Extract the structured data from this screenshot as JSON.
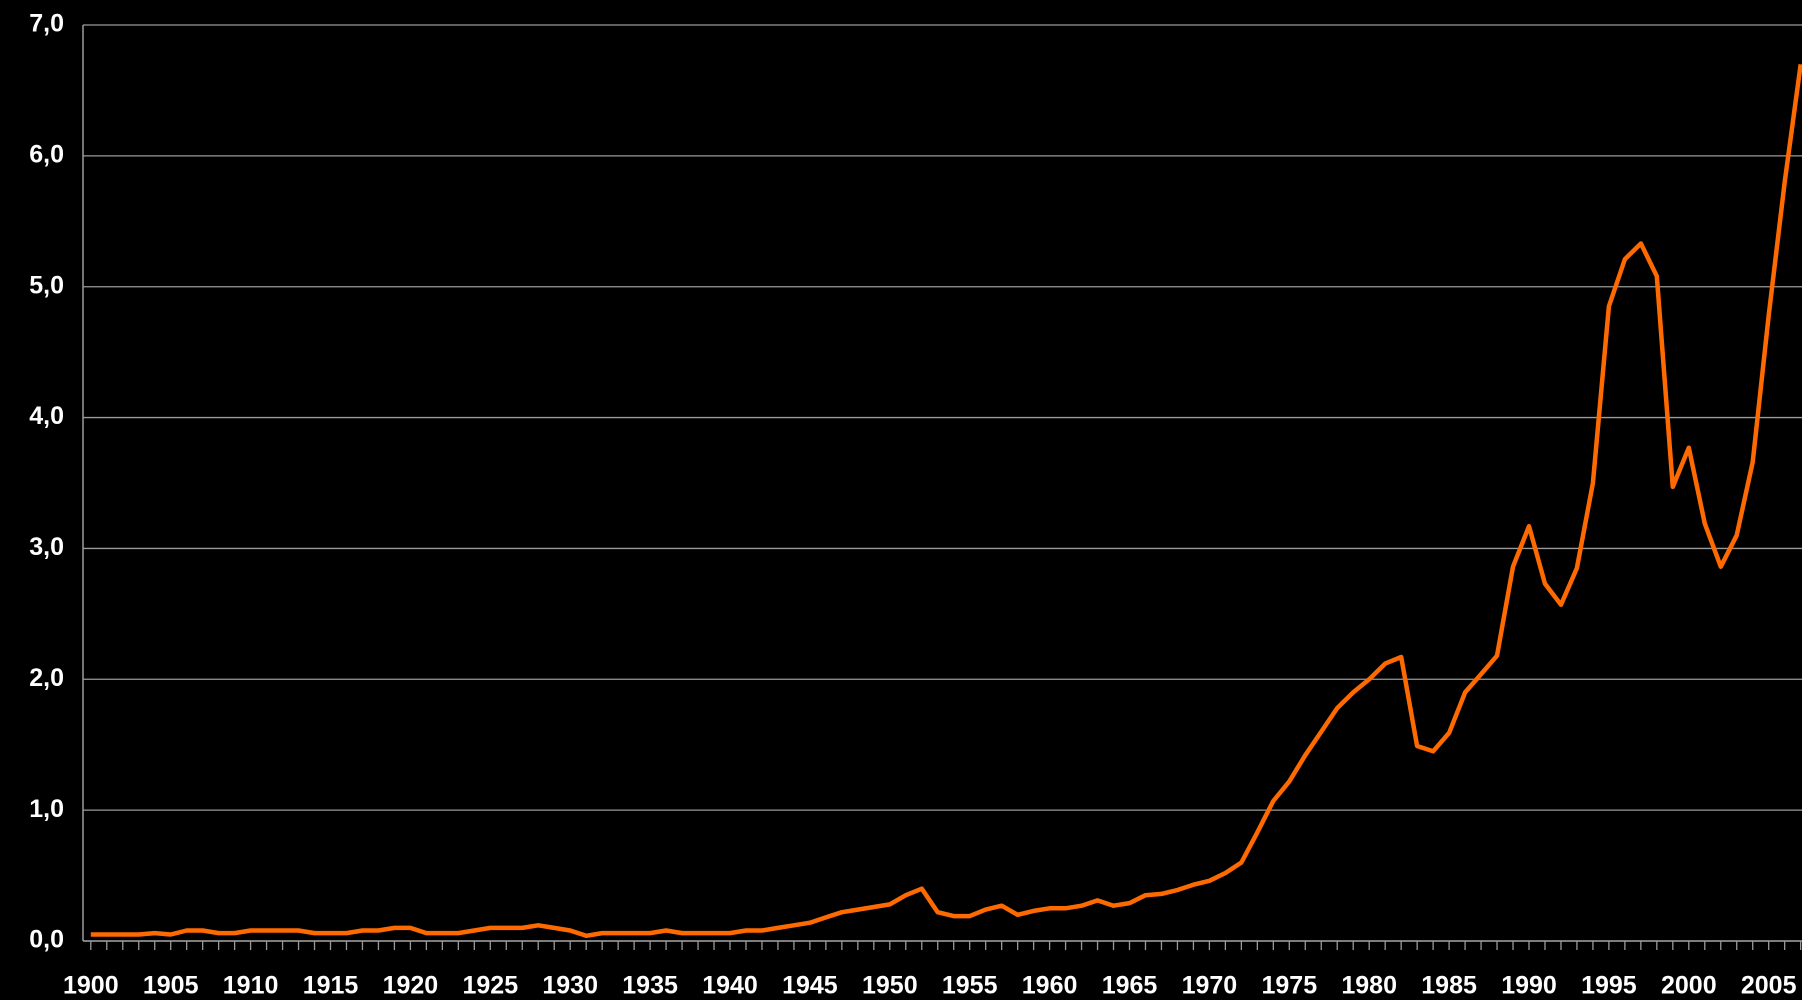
{
  "chart_data": {
    "type": "line",
    "categories": [
      "1900",
      null,
      null,
      null,
      null,
      "1905",
      null,
      null,
      null,
      null,
      "1910",
      null,
      null,
      null,
      null,
      "1915",
      null,
      null,
      null,
      null,
      "1920",
      null,
      null,
      null,
      null,
      "1925",
      null,
      null,
      null,
      null,
      "1930",
      null,
      null,
      null,
      null,
      "1935",
      null,
      null,
      null,
      null,
      "1940",
      null,
      null,
      null,
      null,
      "1945",
      null,
      null,
      null,
      null,
      "1950",
      null,
      null,
      null,
      null,
      "1955",
      null,
      null,
      null,
      null,
      "1960",
      null,
      null,
      null,
      null,
      "1965",
      null,
      null,
      null,
      null,
      "1970",
      null,
      null,
      null,
      null,
      "1975",
      null,
      null,
      null,
      null,
      "1980",
      null,
      null,
      null,
      null,
      "1985",
      null,
      null,
      null,
      null,
      "1990",
      null,
      null,
      null,
      null,
      "1995",
      null,
      null,
      null,
      null,
      "2000",
      null,
      null,
      null,
      null,
      "2005",
      null,
      null
    ],
    "series": [
      {
        "color": "#ff6a00",
        "values": [
          0.05,
          0.05,
          0.05,
          0.05,
          0.06,
          0.05,
          0.08,
          0.08,
          0.06,
          0.06,
          0.08,
          0.08,
          0.08,
          0.08,
          0.06,
          0.06,
          0.06,
          0.08,
          0.08,
          0.1,
          0.1,
          0.06,
          0.06,
          0.06,
          0.08,
          0.1,
          0.1,
          0.1,
          0.12,
          0.1,
          0.08,
          0.04,
          0.06,
          0.06,
          0.06,
          0.06,
          0.08,
          0.06,
          0.06,
          0.06,
          0.06,
          0.08,
          0.08,
          0.1,
          0.12,
          0.14,
          0.18,
          0.22,
          0.24,
          0.26,
          0.28,
          0.35,
          0.4,
          0.22,
          0.19,
          0.19,
          0.24,
          0.27,
          0.2,
          0.23,
          0.25,
          0.25,
          0.27,
          0.31,
          0.27,
          0.29,
          0.35,
          0.36,
          0.39,
          0.43,
          0.46,
          0.52,
          0.6,
          0.83,
          1.07,
          1.22,
          1.42,
          1.6,
          1.78,
          1.9,
          2.0,
          2.12,
          2.17,
          1.49,
          1.45,
          1.59,
          1.9,
          2.04,
          2.18,
          2.86,
          3.17,
          2.73,
          2.57,
          2.85,
          3.5,
          4.85,
          5.21,
          5.33,
          5.08,
          3.47,
          3.77,
          3.19,
          2.86,
          3.1,
          3.66,
          4.78,
          5.8,
          6.7
        ]
      }
    ],
    "ylim": [
      0,
      7
    ],
    "yticks": [
      {
        "value": 0,
        "label": "0,0"
      },
      {
        "value": 1,
        "label": "1,0"
      },
      {
        "value": 2,
        "label": "2,0"
      },
      {
        "value": 3,
        "label": "3,0"
      },
      {
        "value": 4,
        "label": "4,0"
      },
      {
        "value": 5,
        "label": "5,0"
      },
      {
        "value": 6,
        "label": "6,0"
      },
      {
        "value": 7,
        "label": "7,0"
      }
    ],
    "grid": true
  }
}
